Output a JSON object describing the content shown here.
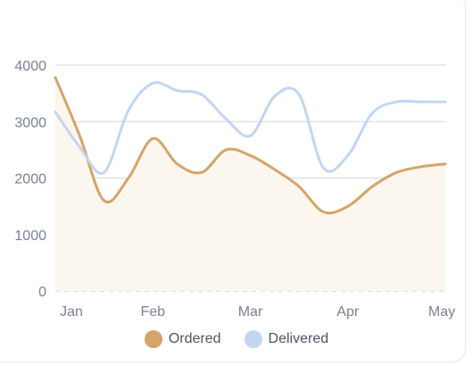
{
  "chart_data": {
    "type": "area",
    "categories": [
      "Jan",
      "Feb",
      "Mar",
      "Apr",
      "May"
    ],
    "x": [
      0,
      0.25,
      0.5,
      0.75,
      1.0,
      1.25,
      1.5,
      1.75,
      2.0,
      2.25,
      2.5,
      2.75,
      3.0,
      3.25,
      3.5,
      3.75,
      4.0
    ],
    "series": [
      {
        "name": "Ordered",
        "color": "#d4a569",
        "fill": "#fbf6ee",
        "values": [
          3780,
          2750,
          1600,
          2000,
          2700,
          2250,
          2100,
          2500,
          2400,
          2150,
          1850,
          1400,
          1500,
          1850,
          2100,
          2200,
          2250
        ]
      },
      {
        "name": "Delivered",
        "color": "#c2d6f2",
        "values": [
          3170,
          2550,
          2100,
          3200,
          3680,
          3550,
          3480,
          3050,
          2750,
          3450,
          3480,
          2180,
          2400,
          3150,
          3350,
          3350,
          3350
        ]
      }
    ],
    "y_ticks": [
      0,
      1000,
      2000,
      3000,
      4000
    ],
    "ylim": [
      0,
      4000
    ],
    "grid": true
  }
}
